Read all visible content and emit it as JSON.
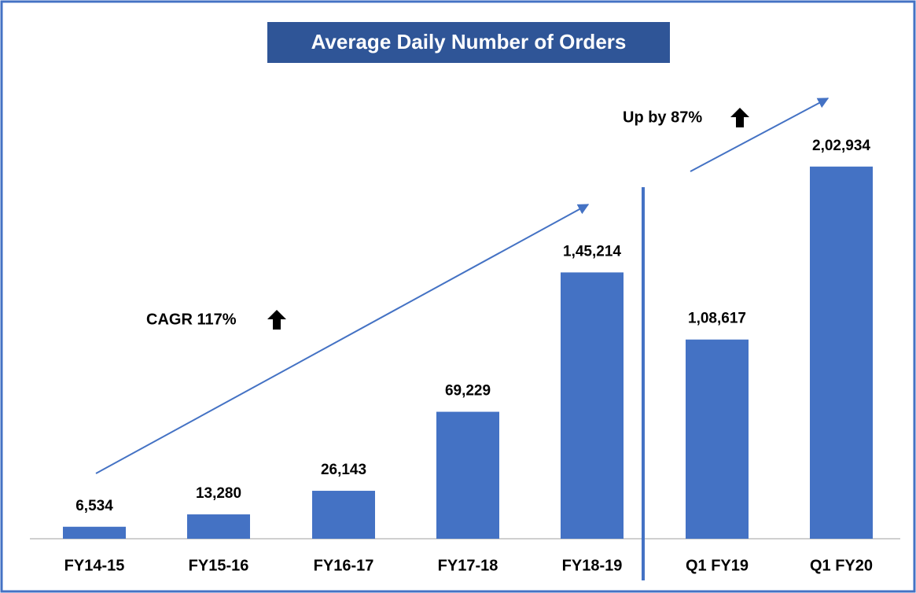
{
  "chart_data": {
    "type": "bar",
    "title": "Average Daily Number of Orders",
    "categories": [
      "FY14-15",
      "FY15-16",
      "FY16-17",
      "FY17-18",
      "FY18-19",
      "Q1 FY19",
      "Q1 FY20"
    ],
    "values": [
      6534,
      13280,
      26143,
      69229,
      145214,
      108617,
      202934
    ],
    "value_labels": [
      "6,534",
      "13,280",
      "26,143",
      "69,229",
      "1,45,214",
      "1,08,617",
      "2,02,934"
    ],
    "color": "#4472c4",
    "ylim": [
      0,
      220000
    ],
    "annotations": [
      "CAGR 117%",
      "Up by 87%"
    ]
  }
}
